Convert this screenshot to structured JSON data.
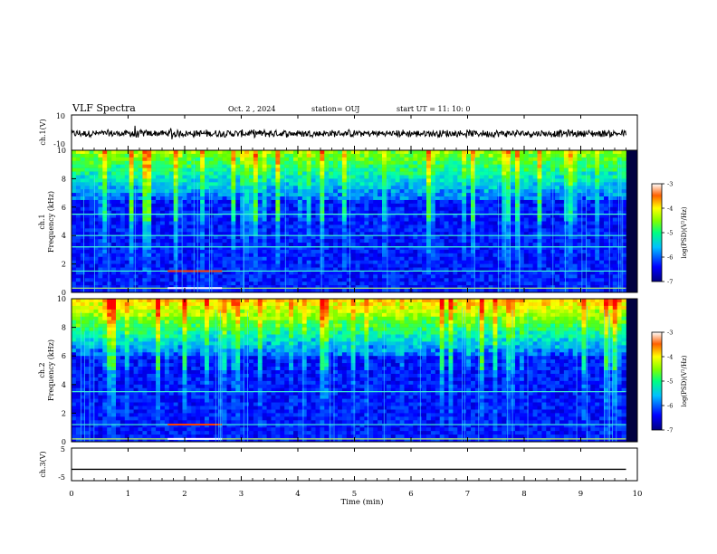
{
  "header": {
    "title": "VLF Spectra",
    "date": "Oct. 2 , 2024",
    "station": "station= OUJ",
    "start": "start UT = 11: 10: 0"
  },
  "chart_data": [
    {
      "type": "line",
      "name": "ch1-waveform",
      "ylabel": "ch.1(V)",
      "ylim": [
        -10,
        10
      ],
      "y_ticks": [
        "10",
        "-10"
      ],
      "xlim": [
        0,
        10
      ],
      "notes": "dense noisy waveform centered near 0 V with amplitude about ±1–3 V, larger spikes near t=1.1, 1.8, 2.5 min"
    },
    {
      "type": "heatmap",
      "name": "ch1-spectrogram",
      "ylabel": "ch.1\nFrequency (kHz)",
      "ylim": [
        0,
        10
      ],
      "y_ticks": [
        "0",
        "2",
        "4",
        "6",
        "8",
        "10"
      ],
      "xlim": [
        0,
        10
      ],
      "colorbar": {
        "label": "log(PSD)(V²/Hz)",
        "range": [
          -7,
          -3
        ],
        "ticks": [
          "-3",
          "-4",
          "-5",
          "-6",
          "-7"
        ]
      },
      "features": {
        "high_band_kHz": [
          6.5,
          10
        ],
        "strong_lines_kHz": [
          0.3,
          1.5,
          3.2,
          4.0,
          5.5
        ],
        "intense_after_min": 1.7
      }
    },
    {
      "type": "heatmap",
      "name": "ch2-spectrogram",
      "ylabel": "ch.2\nFrequency (kHz)",
      "ylim": [
        0,
        10
      ],
      "y_ticks": [
        "0",
        "2",
        "4",
        "6",
        "8",
        "10"
      ],
      "xlim": [
        0,
        10
      ],
      "colorbar": {
        "label": "log(PSD)(V²/Hz)",
        "range": [
          -7,
          -3
        ],
        "ticks": [
          "-3",
          "-4",
          "-5",
          "-6",
          "-7"
        ]
      },
      "features": {
        "high_band_kHz": [
          6,
          10
        ],
        "strong_lines_kHz": [
          0.2,
          1.2,
          3.5
        ],
        "intense_after_min": 1.7
      }
    },
    {
      "type": "line",
      "name": "ch3-waveform",
      "ylabel": "ch.3(V)",
      "ylim": [
        -5,
        5
      ],
      "y_ticks": [
        "5",
        "-5"
      ],
      "xlim": [
        0,
        10
      ],
      "x": [
        0,
        9.8
      ],
      "y": [
        -1.5,
        -1.5
      ]
    }
  ],
  "x_axis": {
    "label": "Time (min)",
    "ticks": [
      "0",
      "1",
      "2",
      "3",
      "4",
      "5",
      "6",
      "7",
      "8",
      "9",
      "10"
    ]
  },
  "colors": {
    "frame": "#000000",
    "cmap": [
      "#000060",
      "#0000ff",
      "#00a0ff",
      "#00ffb0",
      "#60ff00",
      "#ffff00",
      "#ff8000",
      "#ff0000",
      "#ffffff"
    ]
  }
}
